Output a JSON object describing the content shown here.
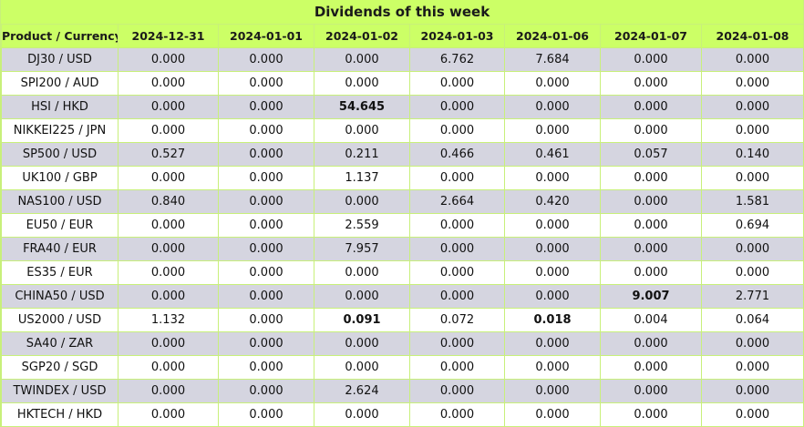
{
  "title": "Dividends of this week",
  "header": {
    "product": "Product / Currency",
    "dates": [
      "2024-12-31",
      "2024-01-01",
      "2024-01-02",
      "2024-01-03",
      "2024-01-06",
      "2024-01-07",
      "2024-01-08"
    ]
  },
  "colors": {
    "header_bg": "#ccff66",
    "row_alt_bg": "#d5d5e0",
    "border": "#c8f07a"
  },
  "rows": [
    {
      "product": "DJ30 / USD",
      "values": [
        "0.000",
        "0.000",
        "0.000",
        "6.762",
        "7.684",
        "0.000",
        "0.000"
      ],
      "bold": []
    },
    {
      "product": "SPI200 / AUD",
      "values": [
        "0.000",
        "0.000",
        "0.000",
        "0.000",
        "0.000",
        "0.000",
        "0.000"
      ],
      "bold": []
    },
    {
      "product": "HSI / HKD",
      "values": [
        "0.000",
        "0.000",
        "54.645",
        "0.000",
        "0.000",
        "0.000",
        "0.000"
      ],
      "bold": [
        2
      ]
    },
    {
      "product": "NIKKEI225 / JPN",
      "values": [
        "0.000",
        "0.000",
        "0.000",
        "0.000",
        "0.000",
        "0.000",
        "0.000"
      ],
      "bold": []
    },
    {
      "product": "SP500 / USD",
      "values": [
        "0.527",
        "0.000",
        "0.211",
        "0.466",
        "0.461",
        "0.057",
        "0.140"
      ],
      "bold": []
    },
    {
      "product": "UK100 / GBP",
      "values": [
        "0.000",
        "0.000",
        "1.137",
        "0.000",
        "0.000",
        "0.000",
        "0.000"
      ],
      "bold": []
    },
    {
      "product": "NAS100 / USD",
      "values": [
        "0.840",
        "0.000",
        "0.000",
        "2.664",
        "0.420",
        "0.000",
        "1.581"
      ],
      "bold": []
    },
    {
      "product": "EU50 / EUR",
      "values": [
        "0.000",
        "0.000",
        "2.559",
        "0.000",
        "0.000",
        "0.000",
        "0.694"
      ],
      "bold": []
    },
    {
      "product": "FRA40 / EUR",
      "values": [
        "0.000",
        "0.000",
        "7.957",
        "0.000",
        "0.000",
        "0.000",
        "0.000"
      ],
      "bold": []
    },
    {
      "product": "ES35 / EUR",
      "values": [
        "0.000",
        "0.000",
        "0.000",
        "0.000",
        "0.000",
        "0.000",
        "0.000"
      ],
      "bold": []
    },
    {
      "product": "CHINA50 / USD",
      "values": [
        "0.000",
        "0.000",
        "0.000",
        "0.000",
        "0.000",
        "9.007",
        "2.771"
      ],
      "bold": [
        5
      ]
    },
    {
      "product": "US2000 / USD",
      "values": [
        "1.132",
        "0.000",
        "0.091",
        "0.072",
        "0.018",
        "0.004",
        "0.064"
      ],
      "bold": [
        2,
        4
      ]
    },
    {
      "product": "SA40 / ZAR",
      "values": [
        "0.000",
        "0.000",
        "0.000",
        "0.000",
        "0.000",
        "0.000",
        "0.000"
      ],
      "bold": []
    },
    {
      "product": "SGP20 / SGD",
      "values": [
        "0.000",
        "0.000",
        "0.000",
        "0.000",
        "0.000",
        "0.000",
        "0.000"
      ],
      "bold": []
    },
    {
      "product": "TWINDEX / USD",
      "values": [
        "0.000",
        "0.000",
        "2.624",
        "0.000",
        "0.000",
        "0.000",
        "0.000"
      ],
      "bold": []
    },
    {
      "product": "HKTECH / HKD",
      "values": [
        "0.000",
        "0.000",
        "0.000",
        "0.000",
        "0.000",
        "0.000",
        "0.000"
      ],
      "bold": []
    }
  ]
}
